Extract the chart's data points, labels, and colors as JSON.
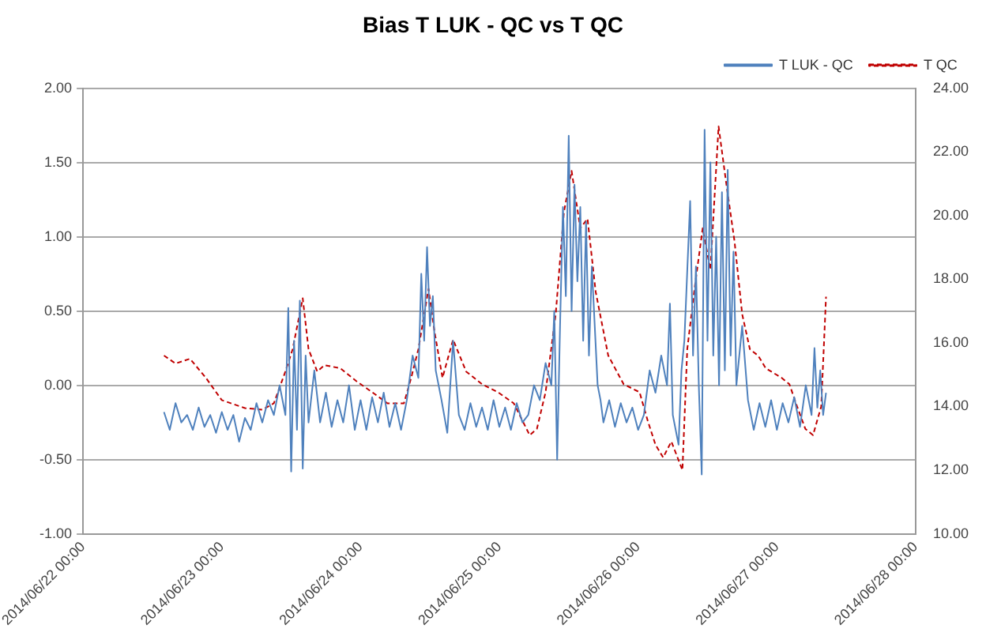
{
  "chart_data": {
    "type": "line",
    "title": "Bias T LUK - QC vs T QC",
    "legend": "top right",
    "grid": "y",
    "xlim": [
      "2014-06-22T00:00",
      "2014-06-28T00:00"
    ],
    "xticks": [
      {
        "value": "2014-06-22T00:00",
        "label": "2014/06/22 00:00"
      },
      {
        "value": "2014-06-23T00:00",
        "label": "2014/06/23 00:00"
      },
      {
        "value": "2014-06-24T00:00",
        "label": "2014/06/24 00:00"
      },
      {
        "value": "2014-06-25T00:00",
        "label": "2014/06/25 00:00"
      },
      {
        "value": "2014-06-26T00:00",
        "label": "2014/06/26 00:00"
      },
      {
        "value": "2014-06-27T00:00",
        "label": "2014/06/27 00:00"
      },
      {
        "value": "2014-06-28T00:00",
        "label": "2014/06/28 00:00"
      }
    ],
    "ylim": [
      -1,
      2
    ],
    "yticks": [
      {
        "value": -1,
        "label": "-1.00"
      },
      {
        "value": -0.5,
        "label": "-0.50"
      },
      {
        "value": 0,
        "label": "0.00"
      },
      {
        "value": 0.5,
        "label": "0.50"
      },
      {
        "value": 1,
        "label": "1.00"
      },
      {
        "value": 1.5,
        "label": "1.50"
      },
      {
        "value": 2,
        "label": "2.00"
      }
    ],
    "y2lim": [
      10,
      24
    ],
    "y2ticks": [
      {
        "value": 10,
        "label": "10.00"
      },
      {
        "value": 12,
        "label": "12.00"
      },
      {
        "value": 14,
        "label": "14.00"
      },
      {
        "value": 16,
        "label": "16.00"
      },
      {
        "value": 18,
        "label": "18.00"
      },
      {
        "value": 20,
        "label": "20.00"
      },
      {
        "value": 22,
        "label": "22.00"
      },
      {
        "value": 24,
        "label": "24.00"
      }
    ],
    "series": [
      {
        "name": "T LUK - QC",
        "color": "#4f81bd",
        "line_style": "solid",
        "x": [
          "2014-06-22T14:00",
          "2014-06-22T15:00",
          "2014-06-22T16:00",
          "2014-06-22T17:00",
          "2014-06-22T18:00",
          "2014-06-22T19:00",
          "2014-06-22T20:00",
          "2014-06-22T21:00",
          "2014-06-22T22:00",
          "2014-06-22T23:00",
          "2014-06-23T00:00",
          "2014-06-23T01:00",
          "2014-06-23T02:00",
          "2014-06-23T03:00",
          "2014-06-23T04:00",
          "2014-06-23T05:00",
          "2014-06-23T06:00",
          "2014-06-23T07:00",
          "2014-06-23T08:00",
          "2014-06-23T09:00",
          "2014-06-23T10:00",
          "2014-06-23T11:00",
          "2014-06-23T11:30",
          "2014-06-23T12:00",
          "2014-06-23T12:30",
          "2014-06-23T13:00",
          "2014-06-23T13:30",
          "2014-06-23T14:00",
          "2014-06-23T14:30",
          "2014-06-23T15:00",
          "2014-06-23T16:00",
          "2014-06-23T17:00",
          "2014-06-23T18:00",
          "2014-06-23T19:00",
          "2014-06-23T20:00",
          "2014-06-23T21:00",
          "2014-06-23T22:00",
          "2014-06-23T23:00",
          "2014-06-24T00:00",
          "2014-06-24T01:00",
          "2014-06-24T02:00",
          "2014-06-24T03:00",
          "2014-06-24T04:00",
          "2014-06-24T05:00",
          "2014-06-24T06:00",
          "2014-06-24T07:00",
          "2014-06-24T08:00",
          "2014-06-24T09:00",
          "2014-06-24T10:00",
          "2014-06-24T10:30",
          "2014-06-24T11:00",
          "2014-06-24T11:30",
          "2014-06-24T12:00",
          "2014-06-24T12:30",
          "2014-06-24T13:00",
          "2014-06-24T14:00",
          "2014-06-24T15:00",
          "2014-06-24T16:00",
          "2014-06-24T17:00",
          "2014-06-24T18:00",
          "2014-06-24T19:00",
          "2014-06-24T20:00",
          "2014-06-24T21:00",
          "2014-06-24T22:00",
          "2014-06-24T23:00",
          "2014-06-25T00:00",
          "2014-06-25T01:00",
          "2014-06-25T02:00",
          "2014-06-25T03:00",
          "2014-06-25T04:00",
          "2014-06-25T05:00",
          "2014-06-25T06:00",
          "2014-06-25T07:00",
          "2014-06-25T08:00",
          "2014-06-25T09:00",
          "2014-06-25T09:30",
          "2014-06-25T10:00",
          "2014-06-25T10:30",
          "2014-06-25T11:00",
          "2014-06-25T11:30",
          "2014-06-25T12:00",
          "2014-06-25T12:30",
          "2014-06-25T13:00",
          "2014-06-25T13:30",
          "2014-06-25T14:00",
          "2014-06-25T14:30",
          "2014-06-25T15:00",
          "2014-06-25T15:30",
          "2014-06-25T16:00",
          "2014-06-25T17:00",
          "2014-06-25T17:30",
          "2014-06-25T18:00",
          "2014-06-25T19:00",
          "2014-06-25T20:00",
          "2014-06-25T21:00",
          "2014-06-25T22:00",
          "2014-06-25T23:00",
          "2014-06-26T00:00",
          "2014-06-26T01:00",
          "2014-06-26T02:00",
          "2014-06-26T03:00",
          "2014-06-26T04:00",
          "2014-06-26T05:00",
          "2014-06-26T05:30",
          "2014-06-26T06:00",
          "2014-06-26T07:00",
          "2014-06-26T07:30",
          "2014-06-26T08:00",
          "2014-06-26T09:00",
          "2014-06-26T09:30",
          "2014-06-26T10:00",
          "2014-06-26T10:30",
          "2014-06-26T11:00",
          "2014-06-26T11:30",
          "2014-06-26T12:00",
          "2014-06-26T12:30",
          "2014-06-26T13:00",
          "2014-06-26T13:30",
          "2014-06-26T14:00",
          "2014-06-26T14:30",
          "2014-06-26T15:00",
          "2014-06-26T15:30",
          "2014-06-26T16:00",
          "2014-06-26T16:30",
          "2014-06-26T17:00",
          "2014-06-26T18:00",
          "2014-06-26T19:00",
          "2014-06-26T20:00",
          "2014-06-26T21:00",
          "2014-06-26T22:00",
          "2014-06-26T23:00",
          "2014-06-27T00:00",
          "2014-06-27T01:00",
          "2014-06-27T02:00",
          "2014-06-27T03:00",
          "2014-06-27T04:00",
          "2014-06-27T05:00",
          "2014-06-27T06:00",
          "2014-06-27T06:30",
          "2014-06-27T07:00",
          "2014-06-27T07:30",
          "2014-06-27T08:00",
          "2014-06-27T08:30"
        ],
        "values": [
          -0.18,
          -0.3,
          -0.12,
          -0.25,
          -0.2,
          -0.3,
          -0.15,
          -0.28,
          -0.2,
          -0.32,
          -0.18,
          -0.3,
          -0.2,
          -0.38,
          -0.22,
          -0.3,
          -0.12,
          -0.25,
          -0.1,
          -0.2,
          0.0,
          -0.2,
          0.52,
          -0.58,
          0.3,
          -0.3,
          0.57,
          -0.56,
          0.2,
          -0.25,
          0.1,
          -0.25,
          -0.05,
          -0.28,
          -0.1,
          -0.25,
          0.0,
          -0.3,
          -0.1,
          -0.3,
          -0.08,
          -0.25,
          -0.05,
          -0.28,
          -0.12,
          -0.3,
          -0.1,
          0.2,
          0.05,
          0.75,
          0.3,
          0.93,
          0.4,
          0.6,
          0.1,
          -0.1,
          -0.32,
          0.3,
          -0.2,
          -0.3,
          -0.12,
          -0.28,
          -0.15,
          -0.3,
          -0.1,
          -0.28,
          -0.15,
          -0.3,
          -0.12,
          -0.25,
          -0.2,
          0.0,
          -0.1,
          0.15,
          0.0,
          0.5,
          -0.5,
          0.4,
          1.2,
          0.6,
          1.68,
          0.5,
          1.35,
          0.7,
          1.2,
          0.3,
          1.1,
          0.2,
          0.8,
          0.0,
          -0.1,
          -0.25,
          -0.1,
          -0.28,
          -0.12,
          -0.25,
          -0.15,
          -0.3,
          -0.2,
          0.1,
          -0.05,
          0.2,
          0.0,
          0.55,
          -0.2,
          -0.4,
          0.1,
          0.3,
          1.24,
          0.2,
          0.8,
          0.0,
          -0.6,
          1.72,
          0.3,
          1.5,
          0.2,
          1.0,
          0.0,
          1.3,
          0.1,
          1.45,
          0.2,
          0.9,
          0.0,
          0.4,
          -0.1,
          -0.3,
          -0.12,
          -0.28,
          -0.1,
          -0.3,
          -0.12,
          -0.25,
          -0.08,
          -0.28,
          0.0,
          -0.2,
          0.25,
          -0.15,
          0.1,
          -0.2,
          -0.05
        ]
      },
      {
        "name": "T QC",
        "color": "#c00000",
        "line_style": "dashed",
        "axis": "y2",
        "x": [
          "2014-06-22T14:00",
          "2014-06-22T16:00",
          "2014-06-22T18:30",
          "2014-06-22T21:15",
          "2014-06-23T00:00",
          "2014-06-23T04:00",
          "2014-06-23T07:00",
          "2014-06-23T09:00",
          "2014-06-23T11:00",
          "2014-06-23T12:15",
          "2014-06-23T14:00",
          "2014-06-23T15:00",
          "2014-06-23T16:30",
          "2014-06-23T17:45",
          "2014-06-23T20:30",
          "2014-06-23T23:15",
          "2014-06-24T02:00",
          "2014-06-24T04:40",
          "2014-06-24T07:30",
          "2014-06-24T08:45",
          "2014-06-24T10:00",
          "2014-06-24T11:45",
          "2014-06-24T12:45",
          "2014-06-24T14:10",
          "2014-06-24T16:00",
          "2014-06-24T18:15",
          "2014-06-24T21:00",
          "2014-06-24T23:45",
          "2014-06-25T02:30",
          "2014-06-25T05:15",
          "2014-06-25T06:30",
          "2014-06-25T08:00",
          "2014-06-25T09:45",
          "2014-06-25T11:10",
          "2014-06-25T12:30",
          "2014-06-25T14:00",
          "2014-06-25T15:15",
          "2014-06-25T16:40",
          "2014-06-25T18:50",
          "2014-06-25T21:30",
          "2014-06-26T00:15",
          "2014-06-26T01:40",
          "2014-06-26T03:00",
          "2014-06-26T04:20",
          "2014-06-26T05:45",
          "2014-06-26T07:40",
          "2014-06-26T08:30",
          "2014-06-26T09:50",
          "2014-06-26T11:10",
          "2014-06-26T12:30",
          "2014-06-26T13:55",
          "2014-06-26T15:15",
          "2014-06-26T16:40",
          "2014-06-26T18:00",
          "2014-06-26T19:20",
          "2014-06-26T20:45",
          "2014-06-26T22:05",
          "2014-06-27T00:50",
          "2014-06-27T02:10",
          "2014-06-27T03:30",
          "2014-06-27T04:55",
          "2014-06-27T06:15",
          "2014-06-27T07:40",
          "2014-06-27T08:30"
        ],
        "values": [
          15.6,
          15.35,
          15.5,
          14.9,
          14.2,
          13.95,
          13.9,
          14.1,
          15.1,
          15.8,
          17.4,
          15.8,
          15.1,
          15.3,
          15.2,
          14.8,
          14.45,
          14.1,
          14.1,
          14.9,
          15.8,
          17.7,
          16.4,
          14.9,
          16.1,
          15.1,
          14.7,
          14.45,
          14.1,
          13.1,
          13.3,
          14.45,
          16.9,
          20.1,
          21.4,
          19.6,
          19.9,
          17.6,
          15.6,
          14.7,
          14.45,
          13.55,
          12.8,
          12.4,
          12.9,
          12.0,
          15.8,
          17.8,
          19.6,
          18.3,
          22.8,
          21.0,
          19.2,
          16.9,
          15.8,
          15.6,
          15.2,
          14.9,
          14.7,
          14.0,
          13.3,
          13.1,
          14.0,
          17.45
        ]
      }
    ]
  }
}
